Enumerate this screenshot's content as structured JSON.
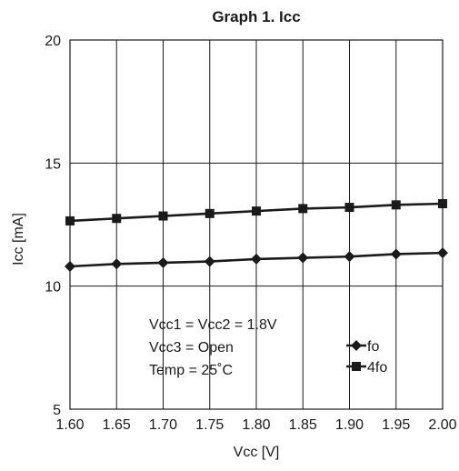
{
  "chart_data": {
    "type": "line",
    "title": "Graph 1. Icc",
    "xlabel": "Vcc [V]",
    "ylabel": "Icc [mA]",
    "x": [
      1.6,
      1.65,
      1.7,
      1.75,
      1.8,
      1.85,
      1.9,
      1.95,
      2.0
    ],
    "x_tick_labels": [
      "1.60",
      "1.65",
      "1.70",
      "1.75",
      "1.80",
      "1.85",
      "1.90",
      "1.95",
      "2.00"
    ],
    "y_ticks": [
      5,
      10,
      15,
      20
    ],
    "xlim": [
      1.6,
      2.0
    ],
    "ylim": [
      5,
      20
    ],
    "grid": true,
    "legend_position": "inside-lower-right",
    "series": [
      {
        "name": "fo",
        "marker": "diamond",
        "values": [
          10.8,
          10.9,
          10.95,
          11.0,
          11.1,
          11.15,
          11.2,
          11.3,
          11.35
        ]
      },
      {
        "name": "4fo",
        "marker": "square",
        "values": [
          12.65,
          12.75,
          12.85,
          12.95,
          13.05,
          13.15,
          13.2,
          13.3,
          13.35
        ]
      }
    ],
    "annotations": [
      "Vcc1 = Vcc2 = 1.8V",
      "Vcc3 = Open",
      "Temp = 25˚C"
    ],
    "colors": {
      "line": "#1a1a1a"
    }
  }
}
